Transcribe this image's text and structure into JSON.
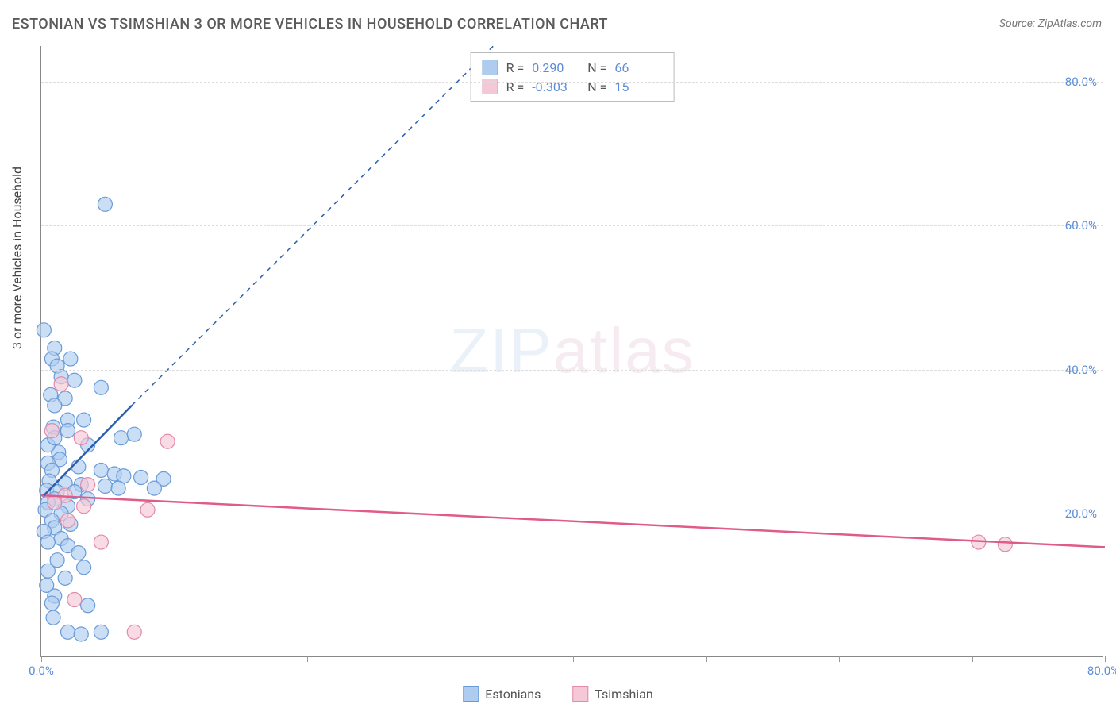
{
  "title": "ESTONIAN VS TSIMSHIAN 3 OR MORE VEHICLES IN HOUSEHOLD CORRELATION CHART",
  "source": "Source: ZipAtlas.com",
  "ylabel": "3 or more Vehicles in Household",
  "watermark": {
    "part1": "ZIP",
    "part2": "atlas",
    "color1": "#a8c4e8",
    "color2": "#d4a8c4"
  },
  "chart": {
    "type": "scatter",
    "background_color": "#ffffff",
    "grid_color": "#dddddd",
    "axis_color": "#888888",
    "xlim": [
      0,
      80
    ],
    "ylim": [
      0,
      85
    ],
    "ytick_step": 20,
    "xtick_label_left": "0.0%",
    "xtick_label_right": "80.0%",
    "ytick_labels": [
      "20.0%",
      "40.0%",
      "60.0%",
      "80.0%"
    ],
    "ytick_values": [
      20,
      40,
      60,
      80
    ],
    "xtick_marks": [
      0,
      10,
      20,
      30,
      40,
      50,
      60,
      70,
      80
    ],
    "label_color": "#5b8dd6",
    "label_fontsize": 15,
    "title_fontsize": 18,
    "title_color": "#5a5a5a",
    "marker_radius": 9,
    "marker_stroke_width": 1.2,
    "line_width_solid": 2.5,
    "line_width_dashed": 1.5,
    "dash_pattern": "6 6"
  },
  "series": [
    {
      "name": "Estonians",
      "fill_color": "#aeccf0",
      "stroke_color": "#6a9bd8",
      "line_color": "#2b5fb0",
      "R": "0.290",
      "N": "66",
      "trend_solid": {
        "x1": 0.2,
        "y1": 22.5,
        "x2": 6.8,
        "y2": 35
      },
      "trend_dashed": {
        "x1": 6.8,
        "y1": 35,
        "x2": 34,
        "y2": 85
      },
      "points": [
        [
          0.2,
          45.5
        ],
        [
          1.0,
          43.0
        ],
        [
          0.8,
          41.5
        ],
        [
          1.2,
          40.5
        ],
        [
          2.2,
          41.5
        ],
        [
          4.8,
          63.0
        ],
        [
          1.5,
          39.0
        ],
        [
          2.5,
          38.5
        ],
        [
          4.5,
          37.5
        ],
        [
          0.7,
          36.5
        ],
        [
          1.8,
          36.0
        ],
        [
          1.0,
          35.0
        ],
        [
          6.0,
          30.5
        ],
        [
          7.0,
          31.0
        ],
        [
          2.0,
          33.0
        ],
        [
          3.2,
          33.0
        ],
        [
          0.9,
          32.0
        ],
        [
          3.5,
          29.5
        ],
        [
          1.3,
          28.5
        ],
        [
          1.4,
          27.5
        ],
        [
          0.5,
          27.0
        ],
        [
          2.8,
          26.5
        ],
        [
          4.5,
          26.0
        ],
        [
          0.8,
          26.0
        ],
        [
          5.5,
          25.5
        ],
        [
          6.2,
          25.2
        ],
        [
          7.5,
          25.0
        ],
        [
          9.2,
          24.8
        ],
        [
          0.6,
          24.5
        ],
        [
          1.8,
          24.2
        ],
        [
          3.0,
          24.0
        ],
        [
          4.8,
          23.8
        ],
        [
          5.8,
          23.5
        ],
        [
          8.5,
          23.5
        ],
        [
          0.4,
          23.2
        ],
        [
          1.2,
          23.0
        ],
        [
          2.5,
          23.0
        ],
        [
          1.0,
          22.0
        ],
        [
          3.5,
          22.0
        ],
        [
          0.5,
          21.5
        ],
        [
          2.0,
          21.0
        ],
        [
          0.3,
          20.5
        ],
        [
          1.5,
          20.0
        ],
        [
          0.8,
          19.0
        ],
        [
          1.0,
          18.0
        ],
        [
          2.2,
          18.5
        ],
        [
          0.2,
          17.5
        ],
        [
          1.5,
          16.5
        ],
        [
          0.5,
          16.0
        ],
        [
          2.0,
          15.5
        ],
        [
          2.8,
          14.5
        ],
        [
          1.2,
          13.5
        ],
        [
          0.5,
          12.0
        ],
        [
          3.2,
          12.5
        ],
        [
          1.8,
          11.0
        ],
        [
          0.4,
          10.0
        ],
        [
          1.0,
          8.5
        ],
        [
          0.8,
          7.5
        ],
        [
          3.5,
          7.2
        ],
        [
          0.9,
          5.5
        ],
        [
          2.0,
          3.5
        ],
        [
          3.0,
          3.2
        ],
        [
          4.5,
          3.5
        ],
        [
          0.5,
          29.5
        ],
        [
          1.0,
          30.5
        ],
        [
          2.0,
          31.5
        ]
      ]
    },
    {
      "name": "Tsimshian",
      "fill_color": "#f4c8d7",
      "stroke_color": "#e28aa8",
      "line_color": "#e05a8a",
      "R": "-0.303",
      "N": "15",
      "trend": {
        "x1": 0,
        "y1": 22.5,
        "x2": 80,
        "y2": 15.3
      },
      "points": [
        [
          1.5,
          38.0
        ],
        [
          0.8,
          31.5
        ],
        [
          3.0,
          30.5
        ],
        [
          9.5,
          30.0
        ],
        [
          3.5,
          24.0
        ],
        [
          1.8,
          22.5
        ],
        [
          1.0,
          21.5
        ],
        [
          3.2,
          21.0
        ],
        [
          8.0,
          20.5
        ],
        [
          2.0,
          19.0
        ],
        [
          4.5,
          16.0
        ],
        [
          2.5,
          8.0
        ],
        [
          7.0,
          3.5
        ],
        [
          70.5,
          16.0
        ],
        [
          72.5,
          15.7
        ]
      ]
    }
  ],
  "stats_box": {
    "R_label": "R =",
    "N_label": "N ="
  },
  "legend": [
    {
      "label": "Estonians",
      "fill": "#aeccf0",
      "stroke": "#6a9bd8"
    },
    {
      "label": "Tsimshian",
      "fill": "#f4c8d7",
      "stroke": "#e28aa8"
    }
  ]
}
